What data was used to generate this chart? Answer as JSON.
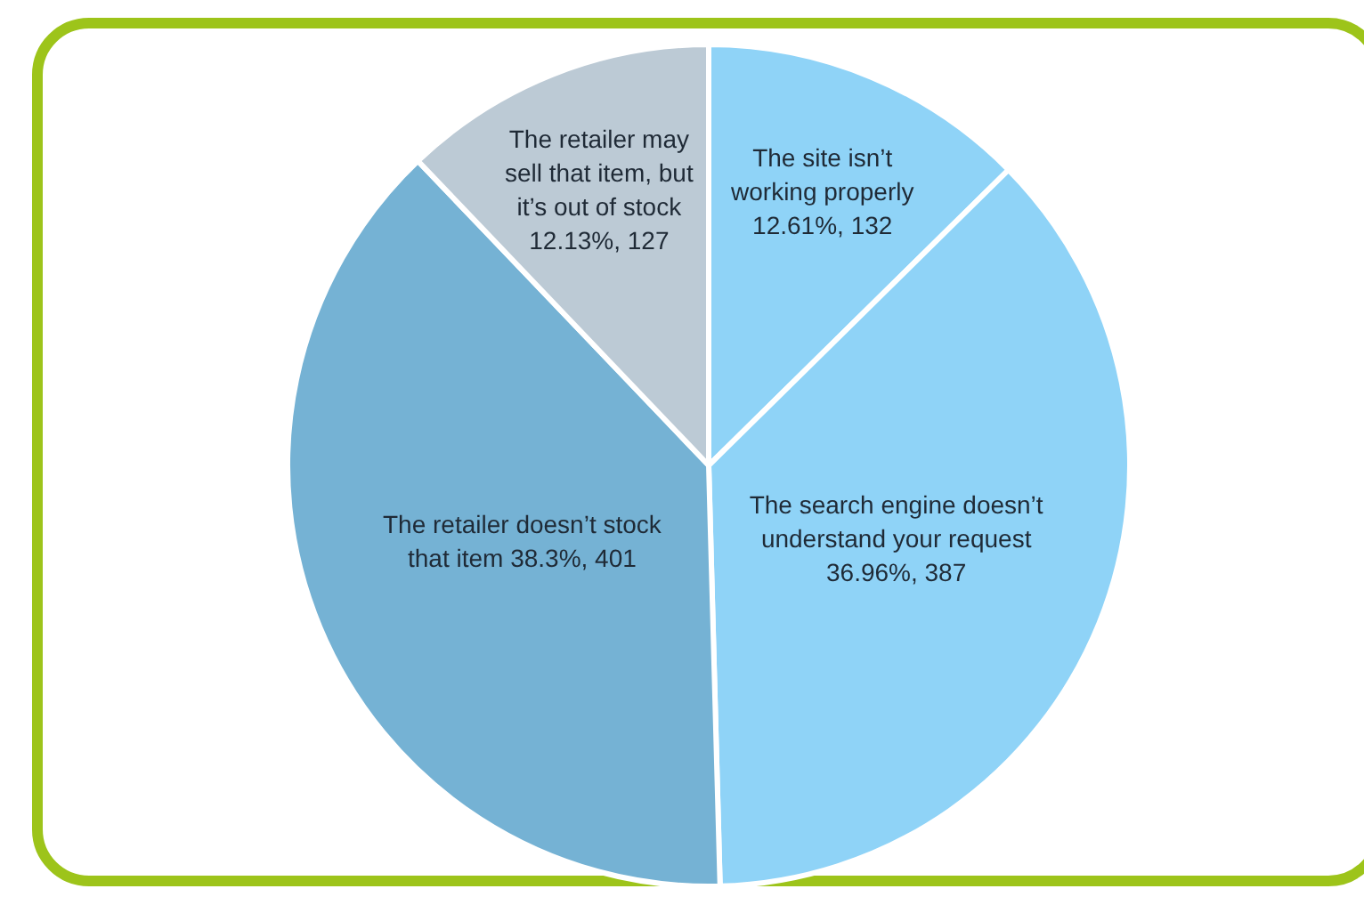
{
  "chart_data": {
    "type": "pie",
    "categories": [
      "The site isn’t working properly",
      "The search engine doesn’t understand your request",
      "The retailer doesn’t stock that item",
      "The retailer may sell that item, but it’s out of stock"
    ],
    "values": [
      132,
      387,
      401,
      127
    ],
    "value_labels": [
      "12.61%, 132",
      "36.96%, 387",
      "38.3%, 401",
      "12.13%, 127"
    ],
    "colors": [
      "#8fd3f7",
      "#8fd3f7",
      "#75b2d4",
      "#bccad5"
    ],
    "legend": false
  }
}
